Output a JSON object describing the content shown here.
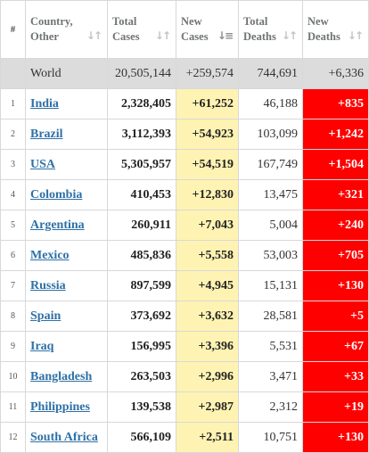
{
  "colors": {
    "new_cases_bg": "#fff3b3",
    "new_deaths_bg": "#ff0000",
    "link": "#2e70a6",
    "world_row_bg": "#dcdcdc"
  },
  "header": {
    "index": "#",
    "country": [
      "Country,",
      "Other"
    ],
    "total_cases": [
      "Total",
      "Cases"
    ],
    "new_cases": [
      "New",
      "Cases"
    ],
    "total_deaths": [
      "Total",
      "Deaths"
    ],
    "new_deaths": [
      "New",
      "Deaths"
    ]
  },
  "world": {
    "name": "World",
    "total_cases": "20,505,144",
    "new_cases": "+259,574",
    "total_deaths": "744,691",
    "new_deaths": "+6,336"
  },
  "rows": [
    {
      "index": "1",
      "country": "India",
      "total_cases": "2,328,405",
      "new_cases": "+61,252",
      "total_deaths": "46,188",
      "new_deaths": "+835"
    },
    {
      "index": "2",
      "country": "Brazil",
      "total_cases": "3,112,393",
      "new_cases": "+54,923",
      "total_deaths": "103,099",
      "new_deaths": "+1,242"
    },
    {
      "index": "3",
      "country": "USA",
      "total_cases": "5,305,957",
      "new_cases": "+54,519",
      "total_deaths": "167,749",
      "new_deaths": "+1,504"
    },
    {
      "index": "4",
      "country": "Colombia",
      "total_cases": "410,453",
      "new_cases": "+12,830",
      "total_deaths": "13,475",
      "new_deaths": "+321"
    },
    {
      "index": "5",
      "country": "Argentina",
      "total_cases": "260,911",
      "new_cases": "+7,043",
      "total_deaths": "5,004",
      "new_deaths": "+240"
    },
    {
      "index": "6",
      "country": "Mexico",
      "total_cases": "485,836",
      "new_cases": "+5,558",
      "total_deaths": "53,003",
      "new_deaths": "+705"
    },
    {
      "index": "7",
      "country": "Russia",
      "total_cases": "897,599",
      "new_cases": "+4,945",
      "total_deaths": "15,131",
      "new_deaths": "+130"
    },
    {
      "index": "8",
      "country": "Spain",
      "total_cases": "373,692",
      "new_cases": "+3,632",
      "total_deaths": "28,581",
      "new_deaths": "+5"
    },
    {
      "index": "9",
      "country": "Iraq",
      "total_cases": "156,995",
      "new_cases": "+3,396",
      "total_deaths": "5,531",
      "new_deaths": "+67"
    },
    {
      "index": "10",
      "country": "Bangladesh",
      "total_cases": "263,503",
      "new_cases": "+2,996",
      "total_deaths": "3,471",
      "new_deaths": "+33"
    },
    {
      "index": "11",
      "country": "Philippines",
      "total_cases": "139,538",
      "new_cases": "+2,987",
      "total_deaths": "2,312",
      "new_deaths": "+19"
    },
    {
      "index": "12",
      "country": "South Africa",
      "total_cases": "566,109",
      "new_cases": "+2,511",
      "total_deaths": "10,751",
      "new_deaths": "+130"
    }
  ]
}
